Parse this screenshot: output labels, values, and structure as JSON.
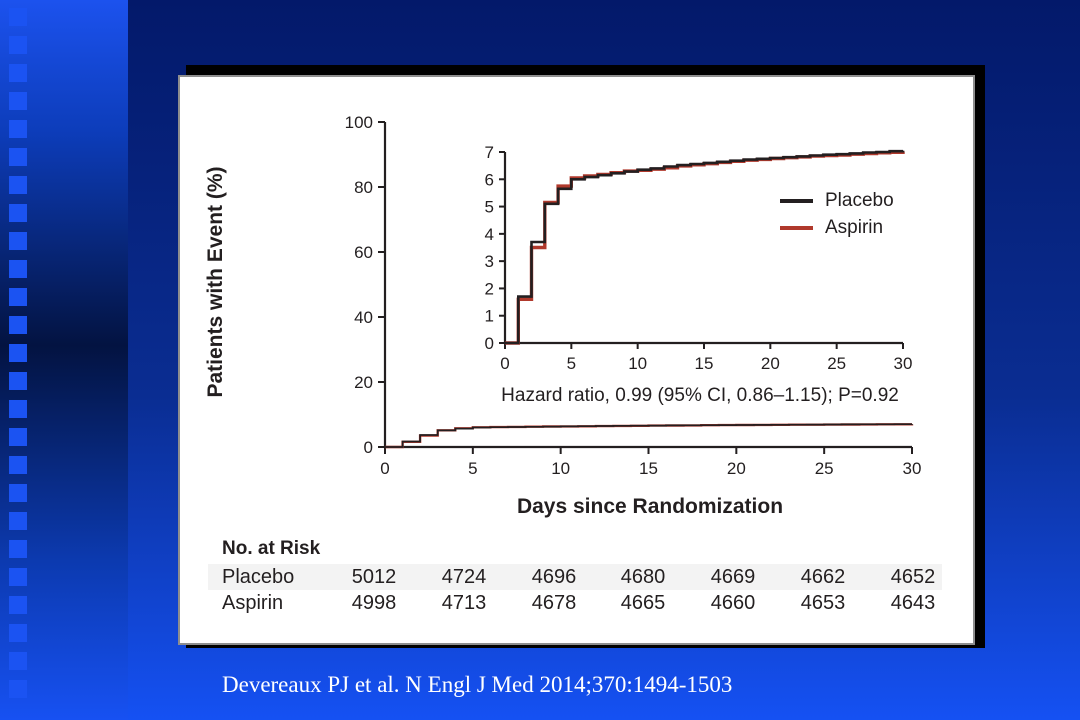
{
  "slide": {
    "citation": "Devereaux PJ et al. N Engl J Med 2014;370:1494-1503"
  },
  "figure": {
    "y_axis_label": "Patients with Event (%)",
    "x_axis_label": "Days since Randomization",
    "hazard_text": "Hazard ratio, 0.99 (95% CI, 0.86–1.15); P=0.92"
  },
  "chart_data": {
    "type": "line",
    "subtype": "kaplan-meier-step",
    "xlabel": "Days since Randomization",
    "ylabel": "Patients with Event (%)",
    "annotation": "Hazard ratio, 0.99 (95% CI, 0.86–1.15); P=0.92",
    "x": [
      0,
      1,
      2,
      3,
      4,
      5,
      6,
      7,
      8,
      9,
      10,
      11,
      12,
      13,
      14,
      15,
      16,
      17,
      18,
      19,
      20,
      21,
      22,
      23,
      24,
      25,
      26,
      27,
      28,
      29,
      30
    ],
    "series": [
      {
        "name": "Placebo",
        "color": "#231f20",
        "values": [
          0,
          1.7,
          3.7,
          5.1,
          5.65,
          6.0,
          6.08,
          6.15,
          6.22,
          6.28,
          6.35,
          6.4,
          6.47,
          6.52,
          6.56,
          6.6,
          6.64,
          6.68,
          6.72,
          6.75,
          6.78,
          6.81,
          6.84,
          6.87,
          6.9,
          6.92,
          6.95,
          6.98,
          7.0,
          7.03,
          7.05
        ]
      },
      {
        "name": "Aspirin",
        "color": "#b0392c",
        "values": [
          0,
          1.6,
          3.5,
          5.15,
          5.75,
          6.05,
          6.12,
          6.18,
          6.24,
          6.3,
          6.33,
          6.37,
          6.42,
          6.49,
          6.53,
          6.57,
          6.62,
          6.66,
          6.7,
          6.73,
          6.76,
          6.79,
          6.82,
          6.85,
          6.87,
          6.89,
          6.92,
          6.94,
          6.97,
          6.99,
          7.02
        ]
      }
    ],
    "main_panel": {
      "xlim": [
        0,
        30
      ],
      "ylim": [
        0,
        100
      ],
      "xticks": [
        0,
        5,
        10,
        15,
        20,
        25,
        30
      ],
      "yticks": [
        0,
        20,
        40,
        60,
        80,
        100
      ],
      "grid": false,
      "legend_position": "none"
    },
    "inset_panel": {
      "xlim": [
        0,
        30
      ],
      "ylim": [
        0,
        7
      ],
      "xticks": [
        0,
        5,
        10,
        15,
        20,
        25,
        30
      ],
      "yticks": [
        0,
        1,
        2,
        3,
        4,
        5,
        6,
        7
      ],
      "grid": false,
      "legend_position": "right"
    }
  },
  "risk_table": {
    "title": "No. at Risk",
    "days": [
      0,
      5,
      10,
      15,
      20,
      25,
      30
    ],
    "rows": [
      {
        "label": "Placebo",
        "values": [
          "5012",
          "4724",
          "4696",
          "4680",
          "4669",
          "4662",
          "4652"
        ],
        "shaded": true
      },
      {
        "label": "Aspirin",
        "values": [
          "4998",
          "4713",
          "4678",
          "4665",
          "4660",
          "4653",
          "4643"
        ],
        "shaded": false
      }
    ]
  }
}
